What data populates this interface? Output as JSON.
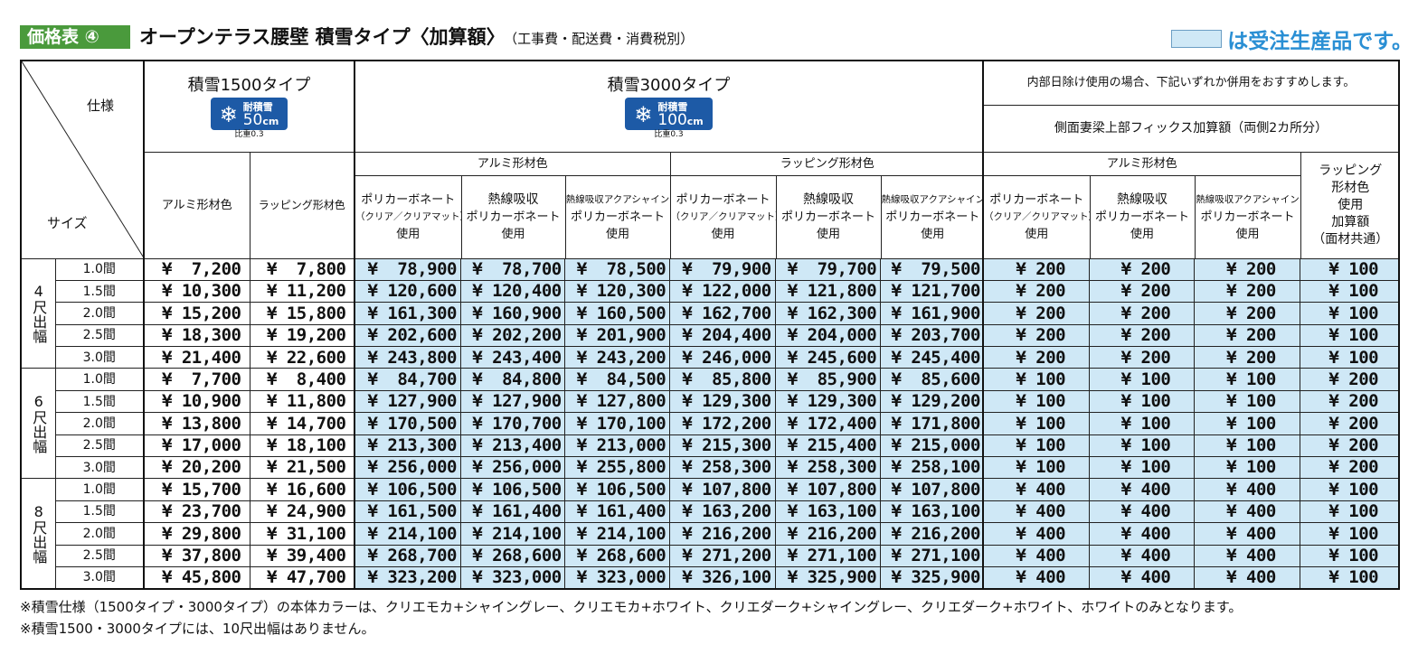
{
  "header": {
    "badge": "価格表 ④",
    "title": "オープンテラス腰壁 積雪タイプ〈加算額〉",
    "subtitle": "（工事費・配送費・消費税別）",
    "legend_text": "は受注生産品です。",
    "legend_color": "#cfe8f6"
  },
  "table": {
    "corner_spec": "仕様",
    "corner_size": "サイズ",
    "type1500": {
      "name": "積雪1500タイプ",
      "badge_label1": "耐積雪",
      "badge_value": "50",
      "badge_unit": "cm",
      "ratio": "比重0.3"
    },
    "type3000": {
      "name": "積雪3000タイプ",
      "badge_label1": "耐積雪",
      "badge_value": "100",
      "badge_unit": "cm",
      "ratio": "比重0.3"
    },
    "sunshade_note": "内部日除け使用の場合、下記いずれか併用をおすすめします。",
    "fix_note": "側面妻梁上部フィックス加算額（両側2カ所分）",
    "group_alumi": "アルミ形材色",
    "group_wrap": "ラッピング形材色",
    "group_alumi2": "アルミ形材色",
    "col_1500_alumi": "アルミ形材色",
    "col_1500_wrap": "ラッピング形材色",
    "col_poly_1": "ポリカーボネート",
    "col_poly_2": "（クリア／クリアマット）",
    "col_poly_3": "使用",
    "col_heat_1": "熱線吸収",
    "col_heat_2": "ポリカーボネート",
    "col_heat_3": "使用",
    "col_aqua_1": "熱線吸収アクアシャイン",
    "col_aqua_2": "ポリカーボネート",
    "col_aqua_3": "使用",
    "col_wrapadd_1": "ラッピング",
    "col_wrapadd_2": "形材色",
    "col_wrapadd_3": "使用",
    "col_wrapadd_4": "加算額",
    "col_wrapadd_5": "（面材共通）",
    "groups": [
      {
        "label": "4尺出幅",
        "rows": [
          {
            "size": "1.0間",
            "p": [
              "¥  7,200",
              "¥  7,800",
              "¥  78,900",
              "¥  78,700",
              "¥  78,500",
              "¥  79,900",
              "¥  79,700",
              "¥  79,500",
              "¥ 200",
              "¥ 200",
              "¥ 200",
              "¥ 100"
            ]
          },
          {
            "size": "1.5間",
            "p": [
              "¥ 10,300",
              "¥ 11,200",
              "¥ 120,600",
              "¥ 120,400",
              "¥ 120,300",
              "¥ 122,000",
              "¥ 121,800",
              "¥ 121,700",
              "¥ 200",
              "¥ 200",
              "¥ 200",
              "¥ 100"
            ]
          },
          {
            "size": "2.0間",
            "p": [
              "¥ 15,200",
              "¥ 15,800",
              "¥ 161,300",
              "¥ 160,900",
              "¥ 160,500",
              "¥ 162,700",
              "¥ 162,300",
              "¥ 161,900",
              "¥ 200",
              "¥ 200",
              "¥ 200",
              "¥ 100"
            ]
          },
          {
            "size": "2.5間",
            "p": [
              "¥ 18,300",
              "¥ 19,200",
              "¥ 202,600",
              "¥ 202,200",
              "¥ 201,900",
              "¥ 204,400",
              "¥ 204,000",
              "¥ 203,700",
              "¥ 200",
              "¥ 200",
              "¥ 200",
              "¥ 100"
            ]
          },
          {
            "size": "3.0間",
            "p": [
              "¥ 21,400",
              "¥ 22,600",
              "¥ 243,800",
              "¥ 243,400",
              "¥ 243,200",
              "¥ 246,000",
              "¥ 245,600",
              "¥ 245,400",
              "¥ 200",
              "¥ 200",
              "¥ 200",
              "¥ 100"
            ]
          }
        ]
      },
      {
        "label": "6尺出幅",
        "rows": [
          {
            "size": "1.0間",
            "p": [
              "¥  7,700",
              "¥  8,400",
              "¥  84,700",
              "¥  84,800",
              "¥  84,500",
              "¥  85,800",
              "¥  85,900",
              "¥  85,600",
              "¥ 100",
              "¥ 100",
              "¥ 100",
              "¥ 200"
            ]
          },
          {
            "size": "1.5間",
            "p": [
              "¥ 10,900",
              "¥ 11,800",
              "¥ 127,900",
              "¥ 127,900",
              "¥ 127,800",
              "¥ 129,300",
              "¥ 129,300",
              "¥ 129,200",
              "¥ 100",
              "¥ 100",
              "¥ 100",
              "¥ 200"
            ]
          },
          {
            "size": "2.0間",
            "p": [
              "¥ 13,800",
              "¥ 14,700",
              "¥ 170,500",
              "¥ 170,700",
              "¥ 170,100",
              "¥ 172,200",
              "¥ 172,400",
              "¥ 171,800",
              "¥ 100",
              "¥ 100",
              "¥ 100",
              "¥ 200"
            ]
          },
          {
            "size": "2.5間",
            "p": [
              "¥ 17,000",
              "¥ 18,100",
              "¥ 213,300",
              "¥ 213,400",
              "¥ 213,000",
              "¥ 215,300",
              "¥ 215,400",
              "¥ 215,000",
              "¥ 100",
              "¥ 100",
              "¥ 100",
              "¥ 200"
            ]
          },
          {
            "size": "3.0間",
            "p": [
              "¥ 20,200",
              "¥ 21,500",
              "¥ 256,000",
              "¥ 256,000",
              "¥ 255,800",
              "¥ 258,300",
              "¥ 258,300",
              "¥ 258,100",
              "¥ 100",
              "¥ 100",
              "¥ 100",
              "¥ 200"
            ]
          }
        ]
      },
      {
        "label": "8尺出幅",
        "rows": [
          {
            "size": "1.0間",
            "p": [
              "¥ 15,700",
              "¥ 16,600",
              "¥ 106,500",
              "¥ 106,500",
              "¥ 106,500",
              "¥ 107,800",
              "¥ 107,800",
              "¥ 107,800",
              "¥ 400",
              "¥ 400",
              "¥ 400",
              "¥ 100"
            ]
          },
          {
            "size": "1.5間",
            "p": [
              "¥ 23,700",
              "¥ 24,900",
              "¥ 161,500",
              "¥ 161,400",
              "¥ 161,400",
              "¥ 163,200",
              "¥ 163,100",
              "¥ 163,100",
              "¥ 400",
              "¥ 400",
              "¥ 400",
              "¥ 100"
            ]
          },
          {
            "size": "2.0間",
            "p": [
              "¥ 29,800",
              "¥ 31,100",
              "¥ 214,100",
              "¥ 214,100",
              "¥ 214,100",
              "¥ 216,200",
              "¥ 216,200",
              "¥ 216,200",
              "¥ 400",
              "¥ 400",
              "¥ 400",
              "¥ 100"
            ]
          },
          {
            "size": "2.5間",
            "p": [
              "¥ 37,800",
              "¥ 39,400",
              "¥ 268,700",
              "¥ 268,600",
              "¥ 268,600",
              "¥ 271,200",
              "¥ 271,100",
              "¥ 271,100",
              "¥ 400",
              "¥ 400",
              "¥ 400",
              "¥ 100"
            ]
          },
          {
            "size": "3.0間",
            "p": [
              "¥ 45,800",
              "¥ 47,700",
              "¥ 323,200",
              "¥ 323,000",
              "¥ 323,000",
              "¥ 326,100",
              "¥ 325,900",
              "¥ 325,900",
              "¥ 400",
              "¥ 400",
              "¥ 400",
              "¥ 100"
            ]
          }
        ]
      }
    ]
  },
  "footnotes": [
    "※積雪仕様（1500タイプ・3000タイプ）の本体カラーは、クリエモカ+シャイングレー、クリエモカ+ホワイト、クリエダーク+シャイングレー、クリエダーク+ホワイト、ホワイトのみとなります。",
    "※積雪1500・3000タイプには、10尺出幅はありません。"
  ]
}
